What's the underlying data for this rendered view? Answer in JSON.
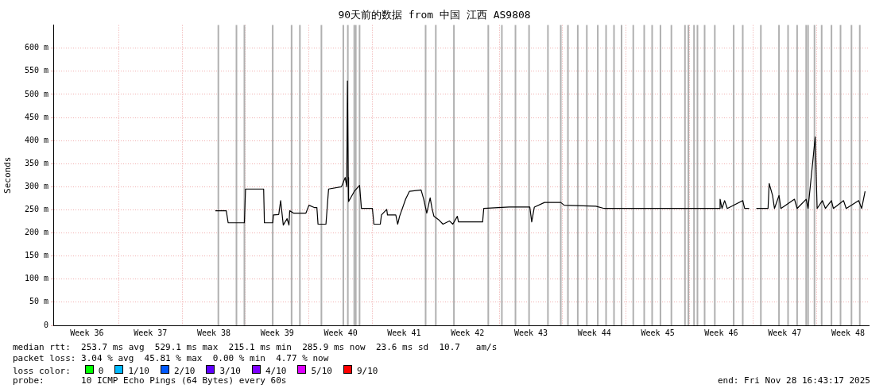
{
  "chart_data": {
    "type": "line",
    "title": "90天前的数据 from 中国 江西 AS9808",
    "ylabel": "Seconds",
    "legend_title": "loss color:",
    "legend": "bottom",
    "grid": true,
    "marker": "none",
    "line_style": "solid",
    "xlim": [
      "2025-08-30T16:43",
      "2025-11-28T16:43"
    ],
    "xticks": [
      {
        "value": "2025-09-03T10:00",
        "label": "Week 36"
      },
      {
        "value": "2025-09-06T22:00",
        "label": null
      },
      {
        "value": "2025-09-10T10:00",
        "label": "Week 37"
      },
      {
        "value": "2025-09-13T22:00",
        "label": null
      },
      {
        "value": "2025-09-17T10:00",
        "label": "Week 38"
      },
      {
        "value": "2025-09-20T22:00",
        "label": null
      },
      {
        "value": "2025-09-24T10:00",
        "label": "Week 39"
      },
      {
        "value": "2025-09-27T22:00",
        "label": null
      },
      {
        "value": "2025-10-01T10:00",
        "label": "Week 40"
      },
      {
        "value": "2025-10-04T22:00",
        "label": null
      },
      {
        "value": "2025-10-08T10:00",
        "label": "Week 41"
      },
      {
        "value": "2025-10-11T22:00",
        "label": null
      },
      {
        "value": "2025-10-15T10:00",
        "label": "Week 42"
      },
      {
        "value": "2025-10-18T22:00",
        "label": null
      },
      {
        "value": "2025-10-22T10:00",
        "label": "Week 43"
      },
      {
        "value": "2025-10-25T22:00",
        "label": null
      },
      {
        "value": "2025-10-29T10:00",
        "label": "Week 44"
      },
      {
        "value": "2025-11-01T22:00",
        "label": null
      },
      {
        "value": "2025-11-05T10:00",
        "label": "Week 45"
      },
      {
        "value": "2025-11-08T22:00",
        "label": null
      },
      {
        "value": "2025-11-12T10:00",
        "label": "Week 46"
      },
      {
        "value": "2025-11-15T22:00",
        "label": null
      },
      {
        "value": "2025-11-19T10:00",
        "label": "Week 47"
      },
      {
        "value": "2025-11-22T22:00",
        "label": null
      },
      {
        "value": "2025-11-26T10:00",
        "label": "Week 48"
      }
    ],
    "ylim": [
      0,
      650
    ],
    "yticks": [
      {
        "value": 0,
        "label": "0"
      },
      {
        "value": 50,
        "label": "50 m"
      },
      {
        "value": 100,
        "label": "100 m"
      },
      {
        "value": 150,
        "label": "150 m"
      },
      {
        "value": 200,
        "label": "200 m"
      },
      {
        "value": 250,
        "label": "250 m"
      },
      {
        "value": 300,
        "label": "300 m"
      },
      {
        "value": 350,
        "label": "350 m"
      },
      {
        "value": 400,
        "label": "400 m"
      },
      {
        "value": 450,
        "label": "450 m"
      },
      {
        "value": 500,
        "label": "500 m"
      },
      {
        "value": 550,
        "label": "550 m"
      },
      {
        "value": 600,
        "label": "600 m"
      }
    ],
    "series": [
      {
        "color": "#000000",
        "x": [
          "2025-09-17T14:00",
          "2025-09-18T19:00",
          "2025-09-19T00:00",
          "2025-09-20T19:00",
          "2025-09-20T22:00",
          "2025-09-22T22:00",
          "2025-09-23T00:00",
          "2025-09-23T22:00",
          "2025-09-24T00:00",
          "2025-09-24T14:00",
          "2025-09-24T19:00",
          "2025-09-25T02:00",
          "2025-09-25T12:00",
          "2025-09-25T17:00",
          "2025-09-25T19:00",
          "2025-09-26T05:00",
          "2025-09-27T14:00",
          "2025-09-27T22:00",
          "2025-09-28T12:00",
          "2025-09-28T19:00",
          "2025-09-28T22:00",
          "2025-09-29T19:00",
          "2025-09-30T02:00",
          "2025-10-01T12:00",
          "2025-10-01T22:00",
          "2025-10-02T02:00",
          "2025-10-02T04:00",
          "2025-10-02T06:00",
          "2025-10-02T07:00",
          "2025-10-02T22:00",
          "2025-10-03T12:00",
          "2025-10-03T17:00",
          "2025-10-04T22:00",
          "2025-10-05T02:00",
          "2025-10-05T19:00",
          "2025-10-05T22:00",
          "2025-10-06T12:00",
          "2025-10-06T14:00",
          "2025-10-07T12:00",
          "2025-10-07T17:00",
          "2025-10-07T22:00",
          "2025-10-08T14:00",
          "2025-10-09T00:00",
          "2025-10-10T07:00",
          "2025-10-10T14:00",
          "2025-10-10T22:00",
          "2025-10-11T07:00",
          "2025-10-11T12:00",
          "2025-10-11T17:00",
          "2025-10-12T05:00",
          "2025-10-12T17:00",
          "2025-10-13T10:00",
          "2025-10-13T19:00",
          "2025-10-14T07:00",
          "2025-10-14T10:00",
          "2025-10-17T02:00",
          "2025-10-17T05:00",
          "2025-10-20T00:00",
          "2025-10-22T07:00",
          "2025-10-22T12:00",
          "2025-10-22T19:00",
          "2025-10-23T22:00",
          "2025-10-25T17:00",
          "2025-10-26T02:00",
          "2025-10-29T14:00",
          "2025-10-30T12:00",
          "2025-11-12T05:00",
          "2025-11-12T07:00",
          "2025-11-12T12:00",
          "2025-11-12T19:00",
          "2025-11-13T02:00",
          "2025-11-14T19:00",
          "2025-11-15T00:00",
          "2025-11-15T12:00",
          "2025-11-15T22:00",
          "2025-11-16T07:00",
          "2025-11-17T14:00",
          "2025-11-17T17:00",
          "2025-11-18T02:00",
          "2025-11-18T07:00",
          "2025-11-18T19:00",
          "2025-11-19T00:00",
          "2025-11-20T12:00",
          "2025-11-20T19:00",
          "2025-11-21T19:00",
          "2025-11-22T00:00",
          "2025-11-22T19:00",
          "2025-11-23T00:00",
          "2025-11-23T14:00",
          "2025-11-23T22:00",
          "2025-11-24T14:00",
          "2025-11-24T19:00",
          "2025-11-25T22:00",
          "2025-11-26T05:00",
          "2025-11-27T14:00",
          "2025-11-27T22:00",
          "2025-11-28T07:00"
        ],
        "values": [
          248,
          248,
          222,
          222,
          295,
          295,
          222,
          222,
          239,
          240,
          270,
          217,
          231,
          217,
          248,
          243,
          243,
          260,
          255,
          255,
          219,
          219,
          295,
          300,
          320,
          300,
          529,
          320,
          268,
          290,
          303,
          253,
          253,
          219,
          219,
          239,
          251,
          239,
          239,
          219,
          236,
          273,
          290,
          293,
          273,
          243,
          276,
          253,
          236,
          229,
          219,
          226,
          219,
          236,
          224,
          224,
          253,
          256,
          256,
          224,
          256,
          266,
          266,
          260,
          258,
          253,
          253,
          273,
          253,
          270,
          253,
          270,
          253,
          253,
          null,
          253,
          253,
          307,
          281,
          253,
          281,
          253,
          273,
          253,
          273,
          253,
          408,
          253,
          270,
          253,
          270,
          253,
          270,
          253,
          270,
          253,
          290
        ]
      },
      {
        "name": "0",
        "color": "#00ff00"
      },
      {
        "name": "1/10",
        "color": "#00b8ff"
      },
      {
        "name": "2/10",
        "color": "#0059ff"
      },
      {
        "name": "3/10",
        "color": "#5e00ff"
      },
      {
        "name": "4/10",
        "color": "#7e00ff"
      },
      {
        "name": "5/10",
        "color": "#dd00ff"
      },
      {
        "name": "9/10",
        "color": "#ff0000"
      }
    ],
    "ref_lines": [
      {
        "axis": "x",
        "value": "2025-09-17T22:00",
        "color": "#b0b0b0"
      },
      {
        "axis": "x",
        "value": "2025-09-19T22:00",
        "color": "#b0b0b0"
      },
      {
        "axis": "x",
        "value": "2025-09-20T19:00",
        "color": "#b0b0b0"
      },
      {
        "axis": "x",
        "value": "2025-09-23T22:00",
        "color": "#b0b0b0"
      },
      {
        "axis": "x",
        "value": "2025-09-26T00:00",
        "color": "#b0b0b0"
      },
      {
        "axis": "x",
        "value": "2025-09-26T22:00",
        "color": "#b0b0b0"
      },
      {
        "axis": "x",
        "value": "2025-09-29T07:00",
        "color": "#b0b0b0"
      },
      {
        "axis": "x",
        "value": "2025-10-01T17:00",
        "color": "#b0b0b0"
      },
      {
        "axis": "x",
        "value": "2025-10-02T05:00",
        "color": "#b0b0b0"
      },
      {
        "axis": "x",
        "value": "2025-10-02T22:00",
        "color": "#b0b0b0"
      },
      {
        "axis": "x",
        "value": "2025-10-03T02:00",
        "color": "#b0b0b0"
      },
      {
        "axis": "x",
        "value": "2025-10-03T12:00",
        "color": "#b0b0b0"
      },
      {
        "axis": "x",
        "value": "2025-10-10T19:00",
        "color": "#b0b0b0"
      },
      {
        "axis": "x",
        "value": "2025-10-11T22:00",
        "color": "#b0b0b0"
      },
      {
        "axis": "x",
        "value": "2025-10-13T22:00",
        "color": "#b0b0b0"
      },
      {
        "axis": "x",
        "value": "2025-10-17T17:00",
        "color": "#b0b0b0"
      },
      {
        "axis": "x",
        "value": "2025-10-19T05:00",
        "color": "#b0b0b0"
      },
      {
        "axis": "x",
        "value": "2025-10-20T17:00",
        "color": "#b0b0b0"
      },
      {
        "axis": "x",
        "value": "2025-10-22T05:00",
        "color": "#b0b0b0"
      },
      {
        "axis": "x",
        "value": "2025-10-24T07:00",
        "color": "#b0b0b0"
      },
      {
        "axis": "x",
        "value": "2025-10-25T17:00",
        "color": "#b0b0b0"
      },
      {
        "axis": "x",
        "value": "2025-10-26T12:00",
        "color": "#b0b0b0"
      },
      {
        "axis": "x",
        "value": "2025-10-27T14:00",
        "color": "#b0b0b0"
      },
      {
        "axis": "x",
        "value": "2025-10-28T14:00",
        "color": "#b0b0b0"
      },
      {
        "axis": "x",
        "value": "2025-10-29T19:00",
        "color": "#b0b0b0"
      },
      {
        "axis": "x",
        "value": "2025-10-30T17:00",
        "color": "#b0b0b0"
      },
      {
        "axis": "x",
        "value": "2025-10-31T14:00",
        "color": "#b0b0b0"
      },
      {
        "axis": "x",
        "value": "2025-11-01T10:00",
        "color": "#b0b0b0"
      },
      {
        "axis": "x",
        "value": "2025-11-02T17:00",
        "color": "#b0b0b0"
      },
      {
        "axis": "x",
        "value": "2025-11-03T22:00",
        "color": "#b0b0b0"
      },
      {
        "axis": "x",
        "value": "2025-11-04T19:00",
        "color": "#b0b0b0"
      },
      {
        "axis": "x",
        "value": "2025-11-05T17:00",
        "color": "#b0b0b0"
      },
      {
        "axis": "x",
        "value": "2025-11-06T22:00",
        "color": "#b0b0b0"
      },
      {
        "axis": "x",
        "value": "2025-11-08T10:00",
        "color": "#b0b0b0"
      },
      {
        "axis": "x",
        "value": "2025-11-08T19:00",
        "color": "#b0b0b0"
      },
      {
        "axis": "x",
        "value": "2025-11-09T10:00",
        "color": "#b0b0b0"
      },
      {
        "axis": "x",
        "value": "2025-11-09T19:00",
        "color": "#b0b0b0"
      },
      {
        "axis": "x",
        "value": "2025-11-10T14:00",
        "color": "#b0b0b0"
      },
      {
        "axis": "x",
        "value": "2025-11-11T17:00",
        "color": "#b0b0b0"
      },
      {
        "axis": "x",
        "value": "2025-11-13T19:00",
        "color": "#b0b0b0"
      },
      {
        "axis": "x",
        "value": "2025-11-14T19:00",
        "color": "#b0b0b0"
      },
      {
        "axis": "x",
        "value": "2025-11-16T19:00",
        "color": "#b0b0b0"
      },
      {
        "axis": "x",
        "value": "2025-11-18T19:00",
        "color": "#b0b0b0"
      },
      {
        "axis": "x",
        "value": "2025-11-19T19:00",
        "color": "#b0b0b0"
      },
      {
        "axis": "x",
        "value": "2025-11-20T19:00",
        "color": "#b0b0b0"
      },
      {
        "axis": "x",
        "value": "2025-11-21T19:00",
        "color": "#b0b0b0"
      },
      {
        "axis": "x",
        "value": "2025-11-22T00:00",
        "color": "#b0b0b0"
      },
      {
        "axis": "x",
        "value": "2025-11-22T17:00",
        "color": "#b0b0b0"
      },
      {
        "axis": "x",
        "value": "2025-11-23T12:00",
        "color": "#b0b0b0"
      },
      {
        "axis": "x",
        "value": "2025-11-24T14:00",
        "color": "#b0b0b0"
      },
      {
        "axis": "x",
        "value": "2025-11-25T14:00",
        "color": "#b0b0b0"
      },
      {
        "axis": "x",
        "value": "2025-11-26T19:00",
        "color": "#b0b0b0"
      },
      {
        "axis": "x",
        "value": "2025-11-27T17:00",
        "color": "#b0b0b0"
      }
    ],
    "annotations": [
      "median rtt:  253.7 ms avg  529.1 ms max  215.1 ms min  285.9 ms now  23.6 ms sd  10.7   am/s",
      "packet loss: 3.04 % avg  45.81 % max  0.00 % min  4.77 % now",
      "probe:       10 ICMP Echo Pings (64 Bytes) every 60s",
      "end: Fri Nov 28 16:43:17 2025"
    ]
  }
}
